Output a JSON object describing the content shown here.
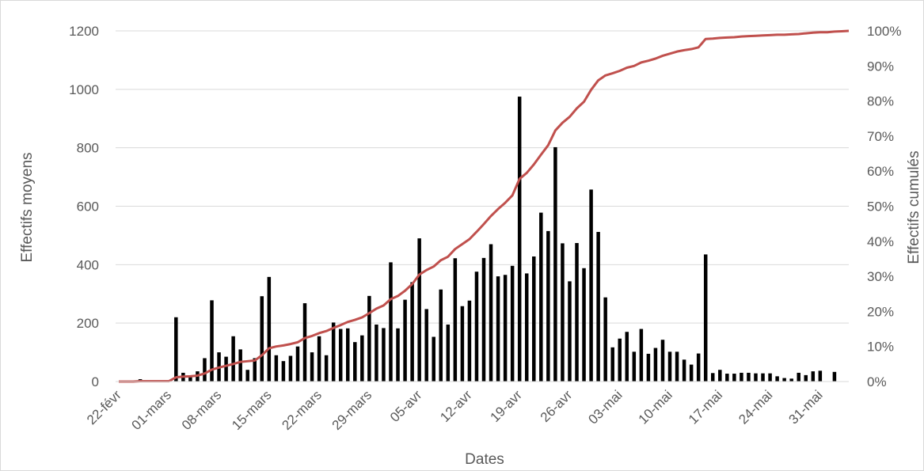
{
  "chart_data": {
    "type": "bar",
    "xlabel": "Dates",
    "ylabel": "Effectifs moyens",
    "y2label": "Effectifs cumulés",
    "ylim": [
      0,
      1200
    ],
    "yticks": [
      0,
      200,
      400,
      600,
      800,
      1000,
      1200
    ],
    "y2lim": [
      0,
      100
    ],
    "y2ticks": [
      "0%",
      "10%",
      "20%",
      "30%",
      "40%",
      "50%",
      "60%",
      "70%",
      "80%",
      "90%",
      "100%"
    ],
    "x_tick_labels": [
      "22-févr",
      "01-mars",
      "08-mars",
      "15-mars",
      "22-mars",
      "29-mars",
      "05-avr",
      "12-avr",
      "19-avr",
      "26-avr",
      "03-mai",
      "10-mai",
      "17-mai",
      "24-mai",
      "31-mai"
    ],
    "grid": true,
    "colors": {
      "bars": "#000000",
      "line": "#c0504d",
      "grid": "#d9d9d9",
      "text": "#595959"
    },
    "series": [
      {
        "type": "bar",
        "axis": "left",
        "values": [
          0,
          2,
          0,
          8,
          0,
          5,
          2,
          3,
          220,
          30,
          18,
          35,
          80,
          278,
          100,
          85,
          155,
          110,
          40,
          80,
          292,
          358,
          90,
          70,
          88,
          120,
          268,
          100,
          155,
          90,
          202,
          180,
          182,
          135,
          158,
          293,
          195,
          183,
          408,
          182,
          280,
          340,
          490,
          248,
          153,
          315,
          195,
          422,
          258,
          277,
          376,
          423,
          470,
          360,
          365,
          396,
          975,
          370,
          428,
          578,
          515,
          802,
          473,
          343,
          474,
          388,
          657,
          512,
          288,
          117,
          147,
          170,
          102,
          180,
          95,
          115,
          143,
          102,
          102,
          75,
          58,
          96,
          435,
          29,
          40,
          27,
          27,
          30,
          30,
          28,
          28,
          28,
          18,
          12,
          10,
          30,
          22,
          35,
          37,
          0,
          33,
          0,
          0
        ]
      },
      {
        "type": "line",
        "axis": "right",
        "values": [
          0,
          0,
          0,
          0.1,
          0.1,
          0.1,
          0.1,
          0.1,
          1.2,
          1.4,
          1.5,
          1.7,
          2.3,
          3.4,
          4.0,
          4.5,
          5.0,
          5.6,
          5.8,
          6.0,
          7.5,
          9.5,
          10.0,
          10.3,
          10.7,
          11.2,
          12.4,
          13.0,
          13.8,
          14.4,
          15.3,
          16.1,
          17.0,
          17.6,
          18.3,
          19.5,
          20.8,
          21.7,
          23.5,
          24.4,
          25.9,
          27.8,
          30.5,
          31.8,
          32.8,
          34.6,
          35.6,
          37.8,
          39.2,
          40.6,
          42.7,
          44.9,
          47.2,
          49.2,
          51.0,
          53.1,
          57.8,
          59.5,
          61.9,
          64.7,
          67.4,
          71.6,
          73.8,
          75.5,
          77.9,
          79.8,
          83.2,
          85.9,
          87.3,
          87.9,
          88.6,
          89.5,
          90.0,
          91.0,
          91.5,
          92.1,
          92.9,
          93.5,
          94.1,
          94.5,
          94.8,
          95.3,
          97.7,
          97.8,
          98.0,
          98.1,
          98.2,
          98.4,
          98.5,
          98.6,
          98.7,
          98.8,
          98.9,
          98.9,
          99.0,
          99.1,
          99.3,
          99.5,
          99.6,
          99.6,
          99.8,
          99.9,
          100
        ]
      }
    ]
  }
}
